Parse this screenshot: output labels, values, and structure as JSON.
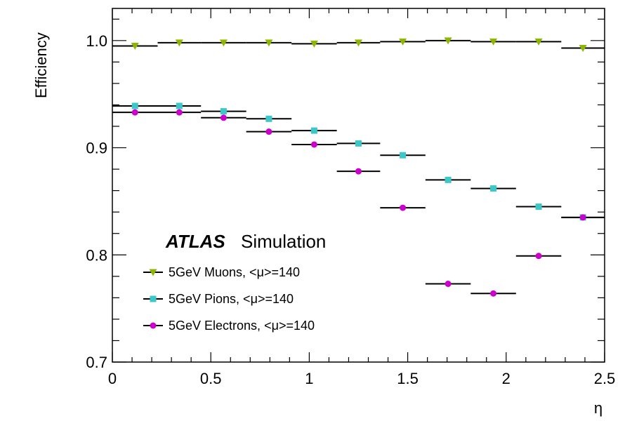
{
  "chart_data": {
    "type": "scatter",
    "xlabel": "η",
    "ylabel": "Efficiency",
    "xlim": [
      0,
      2.5
    ],
    "ylim": [
      0.7,
      1.03
    ],
    "x_ticks": [
      "0",
      "0.5",
      "1",
      "1.5",
      "2",
      "2.5"
    ],
    "y_ticks": [
      "0.7",
      "0.8",
      "0.9",
      "1.0"
    ],
    "bin_edges": [
      0,
      0.23,
      0.45,
      0.68,
      0.91,
      1.14,
      1.36,
      1.59,
      1.82,
      2.05,
      2.28,
      2.5
    ],
    "x": [
      0.115,
      0.34,
      0.565,
      0.795,
      1.025,
      1.25,
      1.475,
      1.705,
      1.935,
      2.165,
      2.39
    ],
    "annotation_bold": "ATLAS",
    "annotation": "Simulation",
    "series": [
      {
        "name": "5GeV Muons, <μ>=140",
        "marker": "triangle-down",
        "color": "#8db600",
        "values": [
          0.995,
          0.998,
          0.998,
          0.998,
          0.997,
          0.998,
          0.999,
          1.0,
          0.999,
          0.999,
          0.993
        ]
      },
      {
        "name": "5GeV Pions, <μ>=140",
        "marker": "square",
        "color": "#3cc8c8",
        "values": [
          0.939,
          0.939,
          0.934,
          0.927,
          0.916,
          0.904,
          0.893,
          0.87,
          0.862,
          0.845,
          0.835
        ]
      },
      {
        "name": "5GeV Electrons, <μ>=140",
        "marker": "circle",
        "color": "#cc00cc",
        "values": [
          0.933,
          0.933,
          0.928,
          0.915,
          0.903,
          0.878,
          0.844,
          0.773,
          0.764,
          0.799,
          0.835
        ]
      }
    ]
  }
}
